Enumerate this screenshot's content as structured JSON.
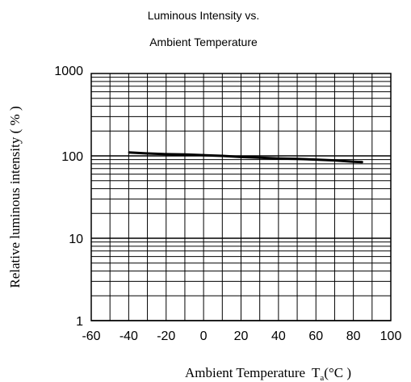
{
  "chart_data": {
    "type": "line",
    "title": "Luminous Intensity vs.",
    "subtitle": "Ambient Temperature",
    "xlabel": "Ambient Temperature",
    "xlabel_sub": "a",
    "xlabel_unit": "(°C )",
    "xlabel_symbol": "T",
    "ylabel": "Relative luminous intensity ( % )",
    "xlim": [
      -60,
      100
    ],
    "ylim": [
      1,
      1000
    ],
    "yscale": "log",
    "grid": true,
    "x_ticks": [
      -60,
      -40,
      -20,
      0,
      20,
      40,
      60,
      80,
      100
    ],
    "x_tick_labels": [
      "-60",
      "-40",
      "-20",
      "0",
      "20",
      "40",
      "60",
      "80",
      "100"
    ],
    "y_ticks": [
      1,
      10,
      100,
      1000
    ],
    "y_tick_labels": [
      "1",
      "10",
      "100",
      "1000"
    ],
    "series": [
      {
        "x": [
          -40,
          -30,
          -20,
          -10,
          0,
          10,
          20,
          30,
          40,
          50,
          60,
          70,
          80,
          85
        ],
        "y": [
          110,
          107,
          105,
          104,
          102,
          100,
          97,
          95,
          93,
          92,
          90,
          88,
          85,
          84
        ]
      }
    ],
    "colors": {
      "line": "#000000",
      "grid": "#000000",
      "axis": "#000000"
    }
  }
}
